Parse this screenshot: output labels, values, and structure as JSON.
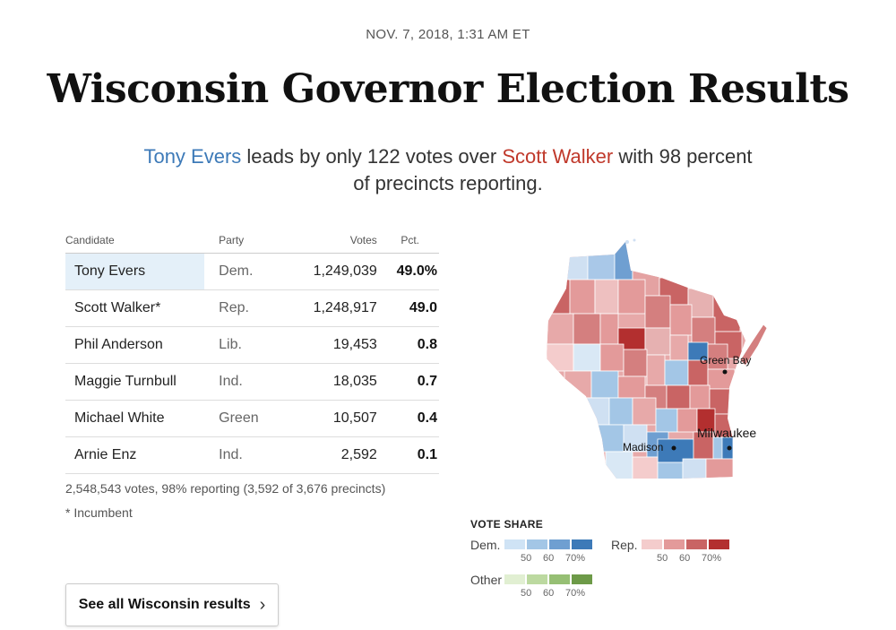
{
  "dateline": "NOV. 7, 2018, 1:31 AM ET",
  "headline": "Wisconsin Governor Election Results",
  "summary": {
    "dem_name": "Tony Evers",
    "text_1": " leads by only 122 votes over ",
    "rep_name": "Scott Walker",
    "text_2": " with 98 percent of precincts reporting."
  },
  "table": {
    "headers": {
      "candidate": "Candidate",
      "party": "Party",
      "votes": "Votes",
      "pct": "Pct."
    },
    "rows": [
      {
        "candidate": "Tony Evers",
        "party": "Dem.",
        "votes": "1,249,039",
        "pct": "49.0%"
      },
      {
        "candidate": "Scott Walker*",
        "party": "Rep.",
        "votes": "1,248,917",
        "pct": "49.0"
      },
      {
        "candidate": "Phil Anderson",
        "party": "Lib.",
        "votes": "19,453",
        "pct": "0.8"
      },
      {
        "candidate": "Maggie Turnbull",
        "party": "Ind.",
        "votes": "18,035",
        "pct": "0.7"
      },
      {
        "candidate": "Michael White",
        "party": "Green",
        "votes": "10,507",
        "pct": "0.4"
      },
      {
        "candidate": "Arnie Enz",
        "party": "Ind.",
        "votes": "2,592",
        "pct": "0.1"
      }
    ],
    "totals": "2,548,543 votes, 98% reporting (3,592 of 3,676 precincts)",
    "incumbent_note": "* Incumbent"
  },
  "see_all_button": {
    "label": "See all Wisconsin results",
    "chevron": "›"
  },
  "map": {
    "cities": [
      "Green Bay",
      "Milwaukee",
      "Madison"
    ]
  },
  "legend": {
    "title": "VOTE SHARE",
    "dem": {
      "label": "Dem.",
      "ticks": [
        "50",
        "60",
        "70%"
      ],
      "colors": [
        "#cfe3f5",
        "#a3c6e6",
        "#6f9fd1",
        "#3d7ab8"
      ]
    },
    "rep": {
      "label": "Rep.",
      "ticks": [
        "50",
        "60",
        "70%"
      ],
      "colors": [
        "#f4cccc",
        "#e39a9a",
        "#c96464",
        "#b32f2f"
      ]
    },
    "other": {
      "label": "Other",
      "ticks": [
        "50",
        "60",
        "70%"
      ],
      "colors": [
        "#e1efd2",
        "#bcd9a0",
        "#96bf74",
        "#6d9a48"
      ]
    }
  },
  "colors": {
    "dem_accent": "#3d7ab8",
    "rep_accent": "#c0392b",
    "leader_highlight": "#e4f0f9"
  }
}
